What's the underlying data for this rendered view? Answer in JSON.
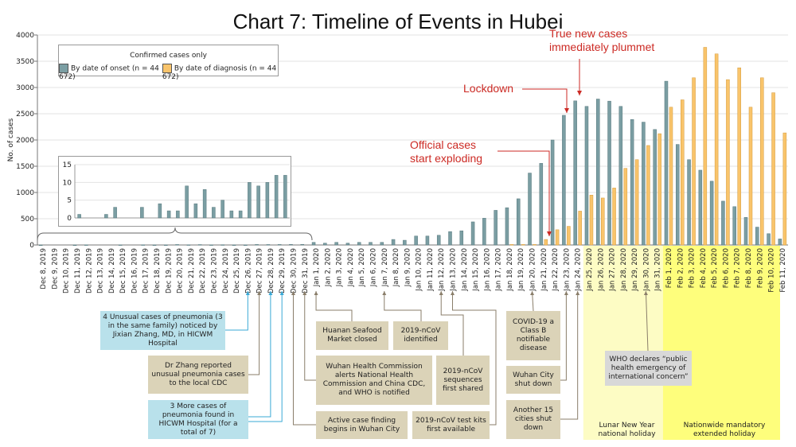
{
  "title": "Chart 7: Timeline of Events in Hubei",
  "colors": {
    "onset": "#7b9ea3",
    "diagnosis": "#f9c46b",
    "annotation_red": "#cc2a24",
    "lunar_band": "#fdfcc4",
    "nationwide_band": "#fefe7c",
    "box_tan": "#dbd3b8",
    "box_blue": "#b9e1eb"
  },
  "chart_data": {
    "type": "bar",
    "title": "Chart 7: Timeline of Events in Hubei",
    "ylabel": "No. of cases",
    "xlabel": "",
    "ylim": [
      0,
      4000
    ],
    "yticks": [
      "0",
      "500",
      "1000",
      "1500",
      "2000",
      "2500",
      "3000",
      "3500",
      "4000"
    ],
    "grid": true,
    "legend": {
      "title": "Confirmed cases only",
      "placement": "top-left",
      "entries": [
        "By date of onset (n = 44 672)",
        "By date of diagnosis (n = 44 672)"
      ]
    },
    "categories": [
      "Dec 8, 2019",
      "Dec 9, 2019",
      "Dec 10, 2019",
      "Dec 11, 2019",
      "Dec 12, 2019",
      "Dec 13, 2019",
      "Dec 14, 2019",
      "Dec 15, 2019",
      "Dec 16, 2019",
      "Dec 17, 2019",
      "Dec 18, 2019",
      "Dec 19, 2019",
      "Dec 20, 2019",
      "Dec 21, 2019",
      "Dec 22, 2019",
      "Dec 23, 2019",
      "Dec 24, 2019",
      "Dec 25, 2019",
      "Dec 26, 2019",
      "Dec 27, 2019",
      "Dec 28, 2019",
      "Dec 29, 2019",
      "Dec 30, 2019",
      "Dec 31, 2019",
      "Jan 1, 2020",
      "Jan 2, 2020",
      "Jan 3, 2020",
      "Jan 4, 2020",
      "Jan 5, 2020",
      "Jan 6, 2020",
      "Jan 7, 2020",
      "Jan 8, 2020",
      "Jan 9, 2020",
      "Jan 10, 2020",
      "Jan 11, 2020",
      "Jan 12, 2020",
      "Jan 13, 2020",
      "Jan 14, 2020",
      "Jan 15, 2020",
      "Jan 16, 2020",
      "Jan 17, 2020",
      "Jan 18, 2020",
      "Jan 19, 2020",
      "Jan 20, 2020",
      "Jan 21, 2020",
      "Jan 22, 2020",
      "Jan 23, 2020",
      "Jan 24, 2020",
      "Jan 25, 2020",
      "Jan 26, 2020",
      "Jan 27, 2020",
      "Jan 28, 2020",
      "Jan 29, 2020",
      "Jan 30, 2020",
      "Jan 31, 2020",
      "Feb 1, 2020",
      "Feb 2, 2020",
      "Feb 3, 2020",
      "Feb 4, 2020",
      "Feb 5, 2020",
      "Feb 6, 2020",
      "Feb 7, 2020",
      "Feb 8, 2020",
      "Feb 9, 2020",
      "Feb 10, 2020",
      "Feb 11, 2020"
    ],
    "series": [
      {
        "name": "By date of onset (n = 44 672)",
        "values": [
          1,
          0,
          0,
          1,
          3,
          0,
          0,
          3,
          0,
          4,
          2,
          2,
          9,
          4,
          8,
          3,
          5,
          2,
          2,
          10,
          9,
          10,
          12,
          12,
          50,
          35,
          50,
          35,
          50,
          50,
          50,
          105,
          90,
          170,
          170,
          185,
          255,
          270,
          440,
          510,
          660,
          710,
          880,
          1370,
          1555,
          2000,
          2470,
          2745,
          2640,
          2780,
          2740,
          2640,
          2390,
          2340,
          2200,
          3120,
          1915,
          1625,
          1425,
          1215,
          835,
          730,
          525,
          340,
          215,
          115
        ]
      },
      {
        "name": "By date of diagnosis (n = 44 672)",
        "values": [
          0,
          0,
          0,
          0,
          0,
          0,
          0,
          0,
          0,
          0,
          0,
          0,
          0,
          0,
          0,
          0,
          0,
          0,
          0,
          0,
          0,
          0,
          0,
          0,
          0,
          0,
          0,
          0,
          0,
          0,
          0,
          0,
          0,
          0,
          0,
          0,
          0,
          0,
          0,
          0,
          0,
          10,
          10,
          10,
          105,
          290,
          355,
          645,
          950,
          895,
          1085,
          1460,
          1625,
          1895,
          2120,
          2625,
          2765,
          3185,
          3765,
          3640,
          3150,
          3375,
          2625,
          3185,
          2900,
          2135
        ]
      }
    ],
    "inset": {
      "ylim": [
        0,
        15
      ],
      "yticks": [
        "0",
        "5",
        "10",
        "15"
      ],
      "range": [
        "Dec 8, 2019",
        "Dec 31, 2019"
      ],
      "series": "By date of onset (n = 44 672)"
    }
  },
  "annotations": {
    "red": {
      "exploding": "Official cases start exploding",
      "lockdown": "Lockdown",
      "plummet": "True new cases immediately plummet"
    },
    "events": [
      {
        "text": "4 Unusual cases of pneumonia (3 in the same family) noticed by Jixian Zhang, MD, in HICWM Hospital",
        "date": "Dec 26, 2019"
      },
      {
        "text": "Dr Zhang reported unusual pneumonia cases to the local CDC",
        "date": "Dec 27, 2019"
      },
      {
        "text": "3 More cases of pneumonia found in HICWM Hospital (for a total of 7)",
        "date": "Dec 28, 2019"
      },
      {
        "text": "Huanan Seafood Market closed",
        "date": "Jan 1, 2020"
      },
      {
        "text": "2019-nCoV identified",
        "date": "Jan 7, 2020"
      },
      {
        "text": "Wuhan Health Commission alerts National Health Commission and China CDC, and WHO is notified",
        "date": "Dec 31, 2019"
      },
      {
        "text": "2019-nCoV sequences first shared",
        "date": "Jan 12, 2020"
      },
      {
        "text": "Active case finding begins in Wuhan City",
        "date": "Dec 30, 2019"
      },
      {
        "text": "2019-nCoV test kits first available",
        "date": "Jan 13, 2020"
      },
      {
        "text": "COVID-19 a Class B notifiable disease",
        "date": "Jan 20, 2020"
      },
      {
        "text": "Wuhan City shut down",
        "date": "Jan 23, 2020"
      },
      {
        "text": "Another 15 cities shut down",
        "date": "Jan 24, 2020"
      },
      {
        "text": "WHO declares “public health emergency of international concern”",
        "date": "Jan 30, 2020"
      }
    ],
    "bands": {
      "lunar": "Lunar New Year national holiday",
      "nationwide": "Nationwide mandatory extended holiday"
    }
  }
}
